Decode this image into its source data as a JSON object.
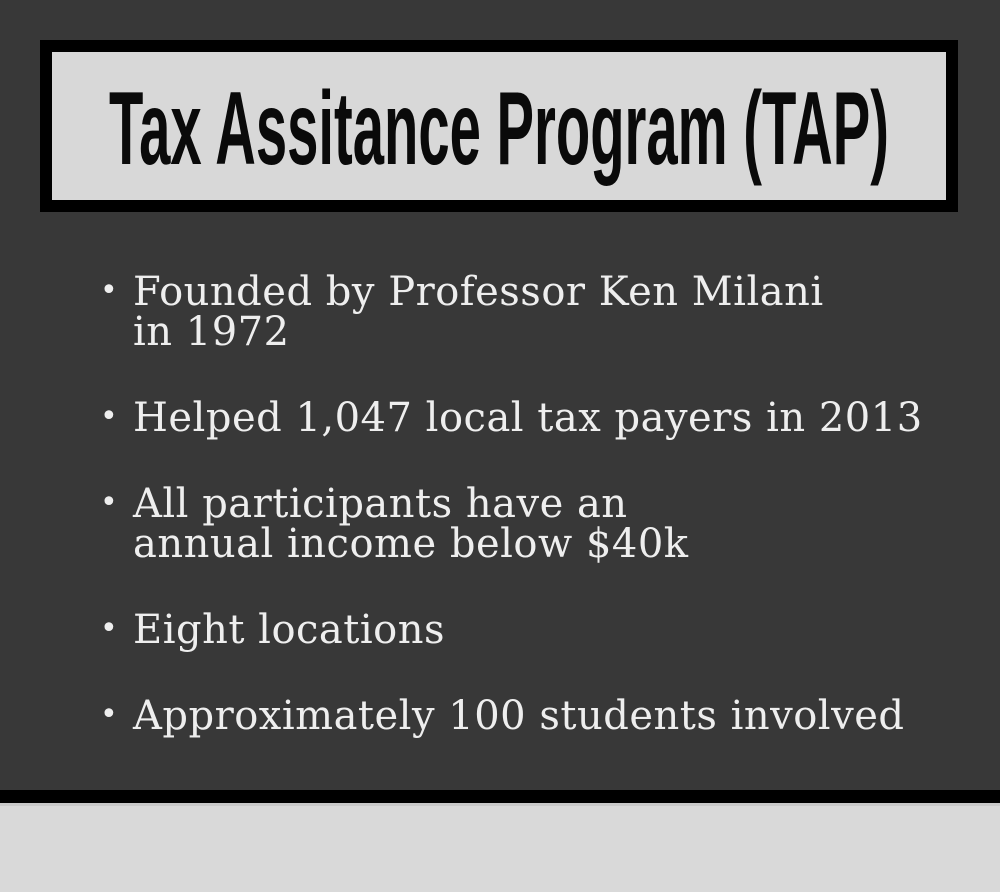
{
  "title_box": {
    "title": "Tax Assitance Program (TAP)"
  },
  "bullet_char": "•",
  "bullets": [
    {
      "lines": [
        "Founded by Professor Ken Milani",
        "in 1972"
      ]
    },
    {
      "lines": [
        "Helped 1,047 local tax payers in 2013"
      ]
    },
    {
      "lines": [
        "All participants have an",
        "annual income below $40k"
      ]
    },
    {
      "lines": [
        "Eight locations"
      ]
    },
    {
      "lines": [
        "Approximately 100 students involved"
      ]
    }
  ],
  "colors": {
    "background": "#383838",
    "panel": "#d8d8d8",
    "border": "#000000",
    "text": "#eeeeee",
    "footer": "#d9d9d9",
    "footer_line": "#c9c9c9",
    "title_color": "#0a0a0a"
  }
}
